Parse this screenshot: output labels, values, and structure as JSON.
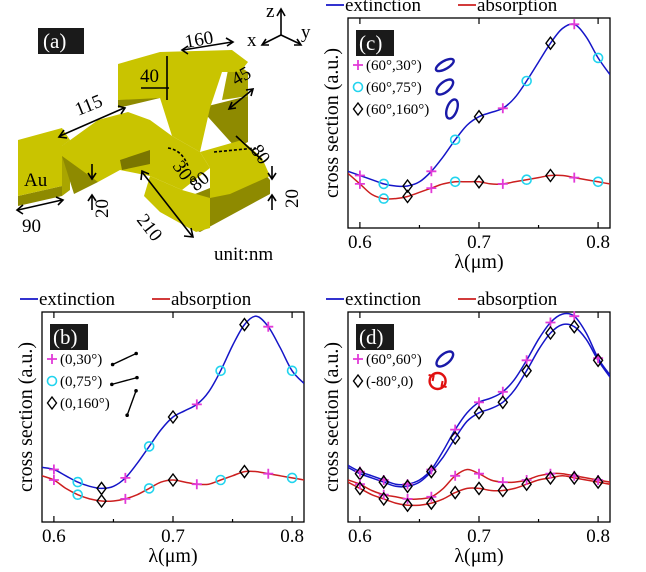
{
  "colors": {
    "extinction": "#1515c8",
    "absorption": "#cc1f1f",
    "plus_marker": "#e23ad8",
    "circle_marker": "#22d4ee",
    "diamond_marker": "#000000",
    "gold": "#c9c400",
    "gold_dark": "#8e8a00",
    "gold_side": "#a9a500",
    "tag_bg": "#1a1a1a",
    "tag_text": "#ffffff"
  },
  "legend": {
    "extinction": "extinction",
    "absorption": "absorption"
  },
  "panel_a": {
    "tag": "(a)",
    "material": "Au",
    "unit": "unit:nm",
    "axes": {
      "z": "z",
      "x": "x",
      "y": "y"
    },
    "dims": {
      "d160": "160",
      "d40": "40",
      "d45": "45",
      "d115": "115",
      "d30": "30°",
      "d80a": "80",
      "d80b": "80",
      "d90": "90",
      "d20a": "20",
      "d210": "210",
      "d20b": "20"
    }
  },
  "chart_data": [
    {
      "id": "c",
      "tag": "(c)",
      "type": "line",
      "xlabel": "λ(μm)",
      "ylabel": "cross section (a.u.)",
      "xlim": [
        0.59,
        0.81
      ],
      "ylim": [
        0,
        1
      ],
      "xticks": [
        "0.6",
        "0.7",
        "0.8"
      ],
      "xtick_values": [
        0.6,
        0.7,
        0.8
      ],
      "markers": [
        {
          "symbol": "plus",
          "label": "(60°,30°)",
          "ellipse": "tilted-thin"
        },
        {
          "symbol": "circle",
          "label": "(60°,75°)",
          "ellipse": "tilted-medium"
        },
        {
          "symbol": "diamond",
          "label": "(60°,160°)",
          "ellipse": "upright"
        }
      ],
      "series": [
        {
          "name": "extinction",
          "color": "#1515c8",
          "x": [
            0.59,
            0.6,
            0.61,
            0.62,
            0.63,
            0.64,
            0.65,
            0.66,
            0.67,
            0.68,
            0.69,
            0.7,
            0.71,
            0.72,
            0.73,
            0.74,
            0.75,
            0.76,
            0.77,
            0.78,
            0.79,
            0.8,
            0.81
          ],
          "y": [
            0.27,
            0.25,
            0.23,
            0.21,
            0.2,
            0.2,
            0.22,
            0.27,
            0.34,
            0.42,
            0.49,
            0.53,
            0.55,
            0.57,
            0.62,
            0.7,
            0.79,
            0.88,
            0.95,
            0.97,
            0.91,
            0.81,
            0.73
          ]
        },
        {
          "name": "absorption",
          "color": "#cc1f1f",
          "x": [
            0.59,
            0.6,
            0.61,
            0.62,
            0.63,
            0.64,
            0.65,
            0.66,
            0.67,
            0.68,
            0.69,
            0.7,
            0.71,
            0.72,
            0.73,
            0.74,
            0.75,
            0.76,
            0.77,
            0.78,
            0.79,
            0.8,
            0.81
          ],
          "y": [
            0.26,
            0.21,
            0.16,
            0.14,
            0.14,
            0.15,
            0.17,
            0.19,
            0.21,
            0.22,
            0.22,
            0.22,
            0.21,
            0.21,
            0.22,
            0.23,
            0.24,
            0.25,
            0.25,
            0.24,
            0.23,
            0.22,
            0.21
          ]
        }
      ]
    },
    {
      "id": "b",
      "tag": "(b)",
      "type": "line",
      "xlabel": "λ(μm)",
      "ylabel": "cross section (a.u.)",
      "xlim": [
        0.59,
        0.81
      ],
      "ylim": [
        0,
        1
      ],
      "xticks": [
        "0.6",
        "0.7",
        "0.8"
      ],
      "xtick_values": [
        0.6,
        0.7,
        0.8
      ],
      "markers": [
        {
          "symbol": "plus",
          "label": "(0,30°)",
          "arrow": "30"
        },
        {
          "symbol": "circle",
          "label": "(0,75°)",
          "arrow": "75"
        },
        {
          "symbol": "diamond",
          "label": "(0,160°)",
          "arrow": "160"
        }
      ],
      "series": [
        {
          "name": "extinction",
          "color": "#1515c8",
          "x": [
            0.59,
            0.6,
            0.61,
            0.62,
            0.63,
            0.64,
            0.65,
            0.66,
            0.67,
            0.68,
            0.69,
            0.7,
            0.71,
            0.72,
            0.73,
            0.74,
            0.75,
            0.76,
            0.77,
            0.78,
            0.79,
            0.8,
            0.81
          ],
          "y": [
            0.26,
            0.25,
            0.22,
            0.19,
            0.17,
            0.16,
            0.17,
            0.21,
            0.28,
            0.36,
            0.44,
            0.5,
            0.53,
            0.56,
            0.62,
            0.72,
            0.84,
            0.94,
            0.98,
            0.93,
            0.83,
            0.72,
            0.66
          ]
        },
        {
          "name": "absorption",
          "color": "#cc1f1f",
          "x": [
            0.59,
            0.6,
            0.61,
            0.62,
            0.63,
            0.64,
            0.65,
            0.66,
            0.67,
            0.68,
            0.69,
            0.7,
            0.71,
            0.72,
            0.73,
            0.74,
            0.75,
            0.76,
            0.77,
            0.78,
            0.79,
            0.8,
            0.81
          ],
          "y": [
            0.22,
            0.2,
            0.16,
            0.13,
            0.11,
            0.1,
            0.1,
            0.11,
            0.13,
            0.16,
            0.19,
            0.2,
            0.19,
            0.18,
            0.18,
            0.2,
            0.22,
            0.24,
            0.24,
            0.23,
            0.22,
            0.21,
            0.2
          ]
        }
      ]
    },
    {
      "id": "d",
      "tag": "(d)",
      "type": "line",
      "xlabel": "λ(μm)",
      "ylabel": "cross section (a.u.)",
      "xlim": [
        0.59,
        0.81
      ],
      "ylim": [
        0,
        1
      ],
      "xticks": [
        "0.6",
        "0.7",
        "0.8"
      ],
      "xtick_values": [
        0.6,
        0.7,
        0.8
      ],
      "markers": [
        {
          "symbol": "plus",
          "label": "(60°,60°)",
          "ellipse": "tilted-medium"
        },
        {
          "symbol": "diamond",
          "label": "(-80°,0)",
          "ellipse": "circular-red"
        }
      ],
      "series": [
        {
          "name": "extinction (60°,60°)",
          "color": "#1515c8",
          "x": [
            0.59,
            0.6,
            0.61,
            0.62,
            0.63,
            0.64,
            0.65,
            0.66,
            0.67,
            0.68,
            0.69,
            0.7,
            0.71,
            0.72,
            0.73,
            0.74,
            0.75,
            0.76,
            0.77,
            0.78,
            0.79,
            0.8,
            0.81
          ],
          "y": [
            0.27,
            0.24,
            0.22,
            0.2,
            0.18,
            0.18,
            0.2,
            0.25,
            0.34,
            0.44,
            0.52,
            0.57,
            0.59,
            0.62,
            0.68,
            0.77,
            0.87,
            0.95,
            0.99,
            0.98,
            0.9,
            0.78,
            0.7
          ]
        },
        {
          "name": "extinction (-80°,0)",
          "color": "#1515c8",
          "x": [
            0.59,
            0.6,
            0.61,
            0.62,
            0.63,
            0.64,
            0.65,
            0.66,
            0.67,
            0.68,
            0.69,
            0.7,
            0.71,
            0.72,
            0.73,
            0.74,
            0.75,
            0.76,
            0.77,
            0.78,
            0.79,
            0.8,
            0.81
          ],
          "y": [
            0.26,
            0.23,
            0.21,
            0.19,
            0.17,
            0.17,
            0.19,
            0.24,
            0.31,
            0.4,
            0.48,
            0.52,
            0.54,
            0.57,
            0.63,
            0.72,
            0.82,
            0.9,
            0.94,
            0.93,
            0.87,
            0.77,
            0.69
          ]
        },
        {
          "name": "absorption (60°,60°)",
          "color": "#cc1f1f",
          "x": [
            0.59,
            0.6,
            0.61,
            0.62,
            0.63,
            0.64,
            0.65,
            0.66,
            0.67,
            0.68,
            0.69,
            0.7,
            0.71,
            0.72,
            0.73,
            0.74,
            0.75,
            0.76,
            0.77,
            0.78,
            0.79,
            0.8,
            0.81
          ],
          "y": [
            0.2,
            0.18,
            0.15,
            0.13,
            0.12,
            0.11,
            0.11,
            0.12,
            0.16,
            0.22,
            0.25,
            0.23,
            0.2,
            0.19,
            0.19,
            0.2,
            0.22,
            0.23,
            0.23,
            0.22,
            0.21,
            0.2,
            0.19
          ]
        },
        {
          "name": "absorption (-80°,0)",
          "color": "#cc1f1f",
          "x": [
            0.59,
            0.6,
            0.61,
            0.62,
            0.63,
            0.64,
            0.65,
            0.66,
            0.67,
            0.68,
            0.69,
            0.7,
            0.71,
            0.72,
            0.73,
            0.74,
            0.75,
            0.76,
            0.77,
            0.78,
            0.79,
            0.8,
            0.81
          ],
          "y": [
            0.19,
            0.16,
            0.13,
            0.11,
            0.09,
            0.08,
            0.08,
            0.09,
            0.11,
            0.14,
            0.16,
            0.16,
            0.15,
            0.15,
            0.16,
            0.18,
            0.2,
            0.21,
            0.22,
            0.21,
            0.2,
            0.19,
            0.18
          ]
        }
      ]
    }
  ]
}
